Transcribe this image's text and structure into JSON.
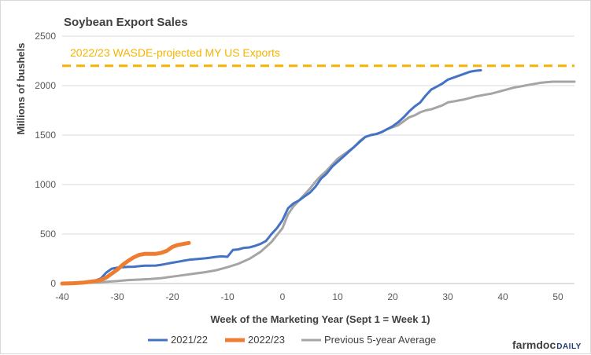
{
  "chart_data": {
    "type": "line",
    "title": "Soybean Export Sales",
    "xlabel": "Week of the Marketing Year (Sept 1 = Week 1)",
    "ylabel": "Millions of bushels",
    "xlim": [
      -40,
      53
    ],
    "ylim": [
      0,
      2500
    ],
    "xticks": [
      "-40",
      "-30",
      "-20",
      "-10",
      "0",
      "10",
      "20",
      "30",
      "40",
      "50"
    ],
    "yticks": [
      "0",
      "500",
      "1000",
      "1500",
      "2000",
      "2500"
    ],
    "grid": "horizontal",
    "legend": "bottom",
    "reference_line": {
      "label": "2022/23 WASDE-projected MY US Exports",
      "value": 2200,
      "color": "#f5b400"
    },
    "series": [
      {
        "name": "2021/22",
        "color": "#4472c4",
        "x": [
          -40,
          -38,
          -36,
          -34,
          -33,
          -32,
          -31,
          -30,
          -29,
          -28,
          -27,
          -26,
          -25,
          -24,
          -23,
          -22,
          -21,
          -20,
          -19,
          -18,
          -17,
          -16,
          -15,
          -14,
          -13,
          -12,
          -11,
          -10,
          -9,
          -8,
          -7,
          -6,
          -5,
          -4,
          -3,
          -2,
          -1,
          0,
          1,
          2,
          3,
          4,
          5,
          6,
          7,
          8,
          9,
          10,
          11,
          12,
          13,
          14,
          15,
          16,
          17,
          18,
          19,
          20,
          21,
          22,
          23,
          24,
          25,
          26,
          27,
          28,
          29,
          30,
          31,
          32,
          33,
          34,
          35,
          36
        ],
        "values": [
          0,
          5,
          12,
          30,
          50,
          110,
          150,
          160,
          165,
          168,
          170,
          175,
          180,
          180,
          182,
          190,
          200,
          210,
          220,
          230,
          240,
          245,
          250,
          255,
          262,
          270,
          275,
          270,
          340,
          345,
          360,
          365,
          380,
          400,
          430,
          500,
          560,
          640,
          760,
          810,
          840,
          880,
          920,
          980,
          1060,
          1110,
          1180,
          1230,
          1280,
          1330,
          1380,
          1430,
          1480,
          1500,
          1510,
          1530,
          1560,
          1590,
          1630,
          1680,
          1740,
          1790,
          1830,
          1900,
          1960,
          1990,
          2020,
          2060,
          2080,
          2100,
          2120,
          2140,
          2150,
          2155
        ]
      },
      {
        "name": "2022/23",
        "color": "#ed7d31",
        "x": [
          -40,
          -38,
          -36,
          -34,
          -33,
          -32,
          -31,
          -30,
          -29,
          -28,
          -27,
          -26,
          -25,
          -24,
          -23,
          -22,
          -21,
          -20,
          -19,
          -18,
          -17
        ],
        "values": [
          0,
          3,
          10,
          25,
          35,
          60,
          100,
          140,
          190,
          230,
          265,
          290,
          300,
          300,
          300,
          310,
          330,
          370,
          390,
          400,
          410
        ]
      },
      {
        "name": "Previous 5-year Average",
        "color": "#a5a5a5",
        "x": [
          -40,
          -38,
          -36,
          -34,
          -32,
          -30,
          -28,
          -26,
          -24,
          -22,
          -20,
          -18,
          -16,
          -14,
          -12,
          -10,
          -8,
          -6,
          -4,
          -2,
          0,
          1,
          2,
          3,
          4,
          5,
          6,
          7,
          8,
          9,
          10,
          11,
          12,
          13,
          14,
          15,
          16,
          17,
          18,
          19,
          20,
          21,
          22,
          23,
          24,
          25,
          26,
          27,
          28,
          29,
          30,
          31,
          32,
          33,
          34,
          35,
          36,
          37,
          38,
          39,
          40,
          41,
          42,
          43,
          44,
          45,
          46,
          47,
          48,
          49,
          50,
          51,
          52,
          53
        ],
        "values": [
          0,
          2,
          5,
          10,
          18,
          25,
          35,
          40,
          45,
          55,
          70,
          85,
          100,
          115,
          135,
          165,
          200,
          250,
          320,
          420,
          560,
          700,
          780,
          840,
          900,
          960,
          1030,
          1090,
          1140,
          1200,
          1260,
          1300,
          1340,
          1380,
          1440,
          1480,
          1500,
          1510,
          1530,
          1560,
          1580,
          1600,
          1640,
          1680,
          1700,
          1730,
          1750,
          1760,
          1780,
          1800,
          1830,
          1840,
          1850,
          1860,
          1875,
          1890,
          1900,
          1910,
          1920,
          1935,
          1950,
          1965,
          1980,
          1990,
          2000,
          2010,
          2020,
          2030,
          2035,
          2040,
          2040,
          2040,
          2040,
          2040
        ]
      }
    ]
  },
  "brand": {
    "part1": "farmdoc",
    "part2": "DAILY"
  }
}
